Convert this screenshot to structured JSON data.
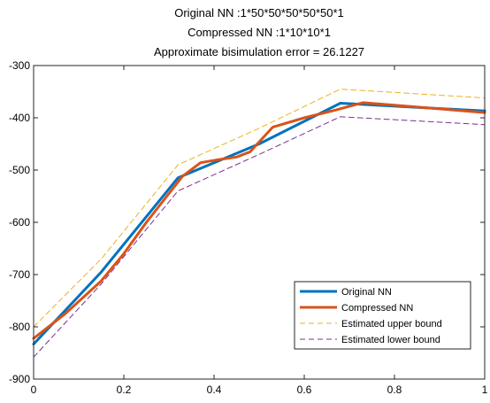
{
  "chart_data": {
    "type": "line",
    "title": [
      "Original NN :1*50*50*50*50*50*1",
      "Compressed NN :1*10*10*1",
      "Approximate bisimulation error = 26.1227"
    ],
    "xlabel": "",
    "ylabel": "",
    "xlim": [
      0,
      1
    ],
    "ylim": [
      -900,
      -300
    ],
    "xticks": [
      0,
      0.2,
      0.4,
      0.6,
      0.8,
      1
    ],
    "xtick_labels": [
      "0",
      "0.2",
      "0.4",
      "0.6",
      "0.8",
      "1"
    ],
    "yticks": [
      -900,
      -800,
      -700,
      -600,
      -500,
      -400,
      -300
    ],
    "ytick_labels": [
      "-900",
      "-800",
      "-700",
      "-600",
      "-500",
      "-400",
      "-300"
    ],
    "grid": false,
    "legend_position": "bottom-right",
    "series": [
      {
        "name": "Original NN",
        "color": "#0072BD",
        "style": "solid",
        "width": 3,
        "x": [
          0,
          0.15,
          0.32,
          0.5,
          0.68,
          1
        ],
        "y": [
          -833,
          -695,
          -515,
          -450,
          -372,
          -387
        ]
      },
      {
        "name": "Compressed NN",
        "color": "#D95319",
        "style": "solid",
        "width": 3,
        "x": [
          0,
          0.07,
          0.15,
          0.2,
          0.25,
          0.33,
          0.37,
          0.41,
          0.45,
          0.48,
          0.53,
          0.6,
          0.67,
          0.73,
          1
        ],
        "y": [
          -822,
          -775,
          -712,
          -660,
          -600,
          -512,
          -486,
          -480,
          -475,
          -465,
          -418,
          -400,
          -385,
          -371,
          -390
        ]
      },
      {
        "name": "Estimated upper bound",
        "color": "#EDB120",
        "style": "dashed",
        "width": 1,
        "x": [
          0,
          0.15,
          0.32,
          0.5,
          0.68,
          1
        ],
        "y": [
          -800,
          -670,
          -490,
          -420,
          -345,
          -362
        ]
      },
      {
        "name": "Estimated lower bound",
        "color": "#7E2F8E",
        "style": "dashed",
        "width": 1,
        "x": [
          0,
          0.15,
          0.32,
          0.5,
          0.68,
          1
        ],
        "y": [
          -858,
          -718,
          -540,
          -470,
          -398,
          -413
        ]
      }
    ]
  }
}
